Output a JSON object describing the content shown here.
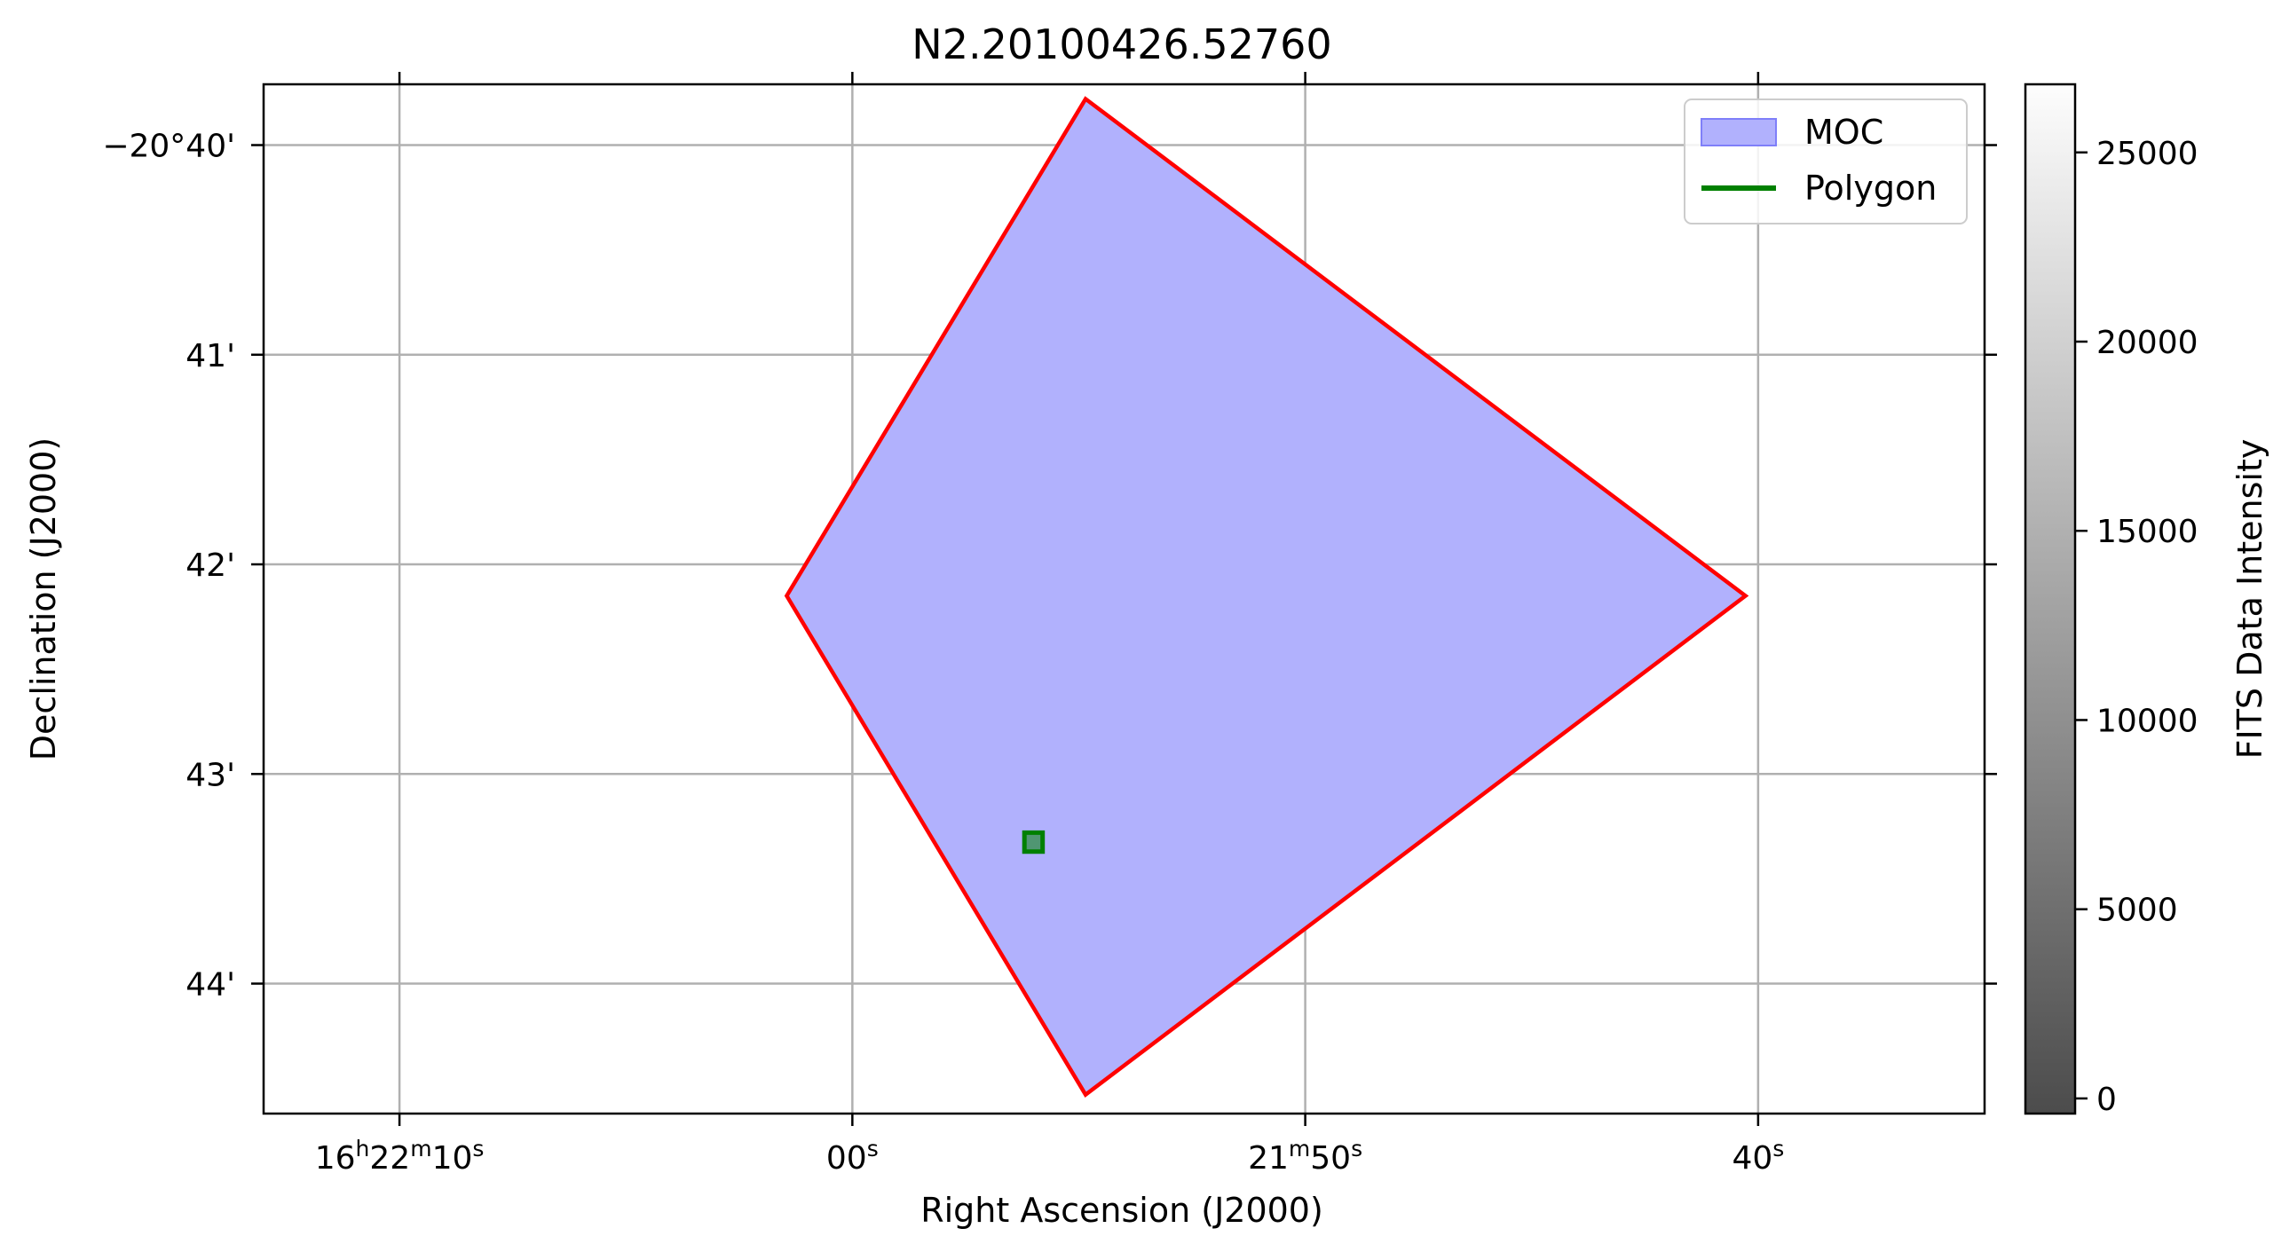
{
  "chart_data": {
    "type": "sky-plot",
    "title": "N2.20100426.52760",
    "xlabel": "Right Ascension (J2000)",
    "ylabel": "Declination (J2000)",
    "colorbar_label": "FITS Data Intensity",
    "grid": true,
    "legend_position": "top-right",
    "x_axis": {
      "unit": "seconds of RA after 16h21m",
      "lim": [
        73.0,
        35.0
      ],
      "ticks": [
        {
          "value": 70,
          "label_parts": [
            "16",
            "h",
            "22",
            "m",
            "10",
            "s"
          ]
        },
        {
          "value": 60,
          "label_parts": [
            "00",
            "s"
          ]
        },
        {
          "value": 50,
          "label_parts": [
            "21",
            "m",
            "50",
            "s"
          ]
        },
        {
          "value": 40,
          "label_parts": [
            "40",
            "s"
          ]
        }
      ]
    },
    "y_axis": {
      "unit": "arcmin offset from -20°40'",
      "lim": [
        -4.62,
        0.29
      ],
      "ticks": [
        {
          "value": 0,
          "label": "−20°40'"
        },
        {
          "value": -1,
          "label": "41'"
        },
        {
          "value": -2,
          "label": "42'"
        },
        {
          "value": -3,
          "label": "43'"
        },
        {
          "value": -4,
          "label": "44'"
        }
      ]
    },
    "colorbar": {
      "lim": [
        -400,
        26800
      ],
      "ticks": [
        0,
        5000,
        10000,
        15000,
        20000,
        25000
      ],
      "colormap": "gray"
    },
    "series": [
      {
        "name": "MOC",
        "kind": "filled-polygon",
        "fill": "#b1b1fd",
        "legend_swatch": "#b1b1fd",
        "edge": "#ff0000",
        "vertices": [
          {
            "x": 54.85,
            "y": 0.22
          },
          {
            "x": 40.28,
            "y": -2.15
          },
          {
            "x": 54.85,
            "y": -4.53
          },
          {
            "x": 61.45,
            "y": -2.15
          }
        ]
      },
      {
        "name": "Polygon",
        "kind": "outline-polygon",
        "color": "#008000",
        "vertices": [
          {
            "x": 56.2,
            "y": -3.28
          },
          {
            "x": 55.8,
            "y": -3.28
          },
          {
            "x": 55.8,
            "y": -3.37
          },
          {
            "x": 56.2,
            "y": -3.37
          }
        ]
      }
    ]
  }
}
